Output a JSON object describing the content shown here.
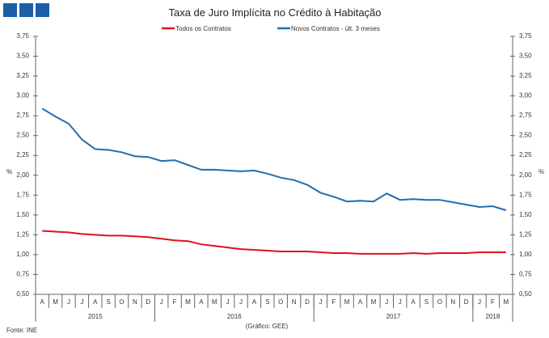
{
  "chart_data": {
    "type": "line",
    "title": "Taxa de Juro Implícita no Crédito à Habitação",
    "ylabel": "%",
    "ylim": [
      0.5,
      3.75
    ],
    "yticks": [
      "0,50",
      "0,75",
      "1,00",
      "1,25",
      "1,50",
      "1,75",
      "2,00",
      "2,25",
      "2,50",
      "2,75",
      "3,00",
      "3,25",
      "3,50",
      "3,75"
    ],
    "months": [
      "A",
      "M",
      "J",
      "J",
      "A",
      "S",
      "O",
      "N",
      "D",
      "J",
      "F",
      "M",
      "A",
      "M",
      "J",
      "J",
      "A",
      "S",
      "O",
      "N",
      "D",
      "J",
      "F",
      "M",
      "A",
      "M",
      "J",
      "J",
      "A",
      "S",
      "O",
      "N",
      "D",
      "J",
      "F",
      "M"
    ],
    "years": [
      {
        "label": "2015",
        "count": 9
      },
      {
        "label": "2016",
        "count": 12
      },
      {
        "label": "2017",
        "count": 12
      },
      {
        "label": "2018",
        "count": 3
      }
    ],
    "legend_position": "top",
    "series": [
      {
        "name": "Todos os Contratos",
        "color": "#e0101a",
        "values": [
          1.3,
          1.29,
          1.28,
          1.26,
          1.25,
          1.24,
          1.24,
          1.23,
          1.22,
          1.2,
          1.18,
          1.17,
          1.13,
          1.11,
          1.09,
          1.07,
          1.06,
          1.05,
          1.04,
          1.04,
          1.04,
          1.03,
          1.02,
          1.02,
          1.01,
          1.01,
          1.01,
          1.01,
          1.02,
          1.01,
          1.02,
          1.02,
          1.02,
          1.03,
          1.03,
          1.03
        ]
      },
      {
        "name": "Novos Contratos - últ. 3 meses",
        "color": "#1f6eb0",
        "values": [
          2.84,
          2.74,
          2.65,
          2.45,
          2.33,
          2.32,
          2.29,
          2.24,
          2.23,
          2.18,
          2.19,
          2.13,
          2.07,
          2.07,
          2.06,
          2.05,
          2.06,
          2.02,
          1.97,
          1.94,
          1.88,
          1.78,
          1.73,
          1.67,
          1.68,
          1.67,
          1.77,
          1.69,
          1.7,
          1.69,
          1.69,
          1.66,
          1.63,
          1.6,
          1.61,
          1.56
        ]
      }
    ]
  },
  "footer": {
    "source": "Fonte: INE",
    "credit": "(Gráfico: GEE)"
  }
}
